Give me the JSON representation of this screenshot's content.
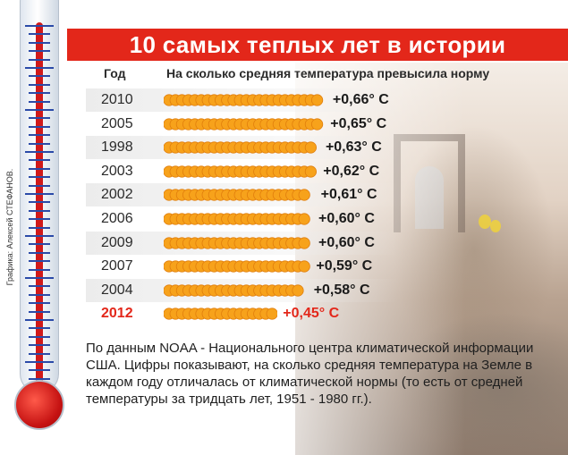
{
  "title": "10 самых теплых лет в истории",
  "credit": "Графика: Алексей СТЕФАНОВ.",
  "headers": {
    "year": "Год",
    "value": "На сколько средняя температура  превысила норму"
  },
  "footnote": "По данным NOAA - Национального центра климатической информации США. Цифры показывают, на сколько средняя температура на Земле в каждом году отличалась от климатической нормы (то есть от средней температуры за тридцать лет, 1951 - 1980 гг.).",
  "colors": {
    "title_bg": "#e3271a",
    "sun": "#f7a21b",
    "highlight": "#e3271a",
    "row_stripe": "#ececec"
  },
  "chart_data": {
    "type": "bar",
    "orientation": "horizontal",
    "title": "10 самых теплых лет в истории",
    "categories": [
      "2010",
      "2005",
      "1998",
      "2003",
      "2002",
      "2006",
      "2009",
      "2007",
      "2004",
      "2012"
    ],
    "values": [
      0.66,
      0.65,
      0.63,
      0.62,
      0.61,
      0.6,
      0.6,
      0.59,
      0.58,
      0.45
    ],
    "value_labels": [
      "+0,66° C",
      "+0,65° C",
      "+0,63° C",
      "+0,62° C",
      "+0,61° C",
      "+0,60° C",
      "+0,60° C",
      "+0,59° C",
      "+0,58° C",
      "+0,45° C"
    ],
    "highlight_category": "2012",
    "xlabel": "На сколько средняя температура  превысила норму",
    "ylabel": "Год"
  }
}
